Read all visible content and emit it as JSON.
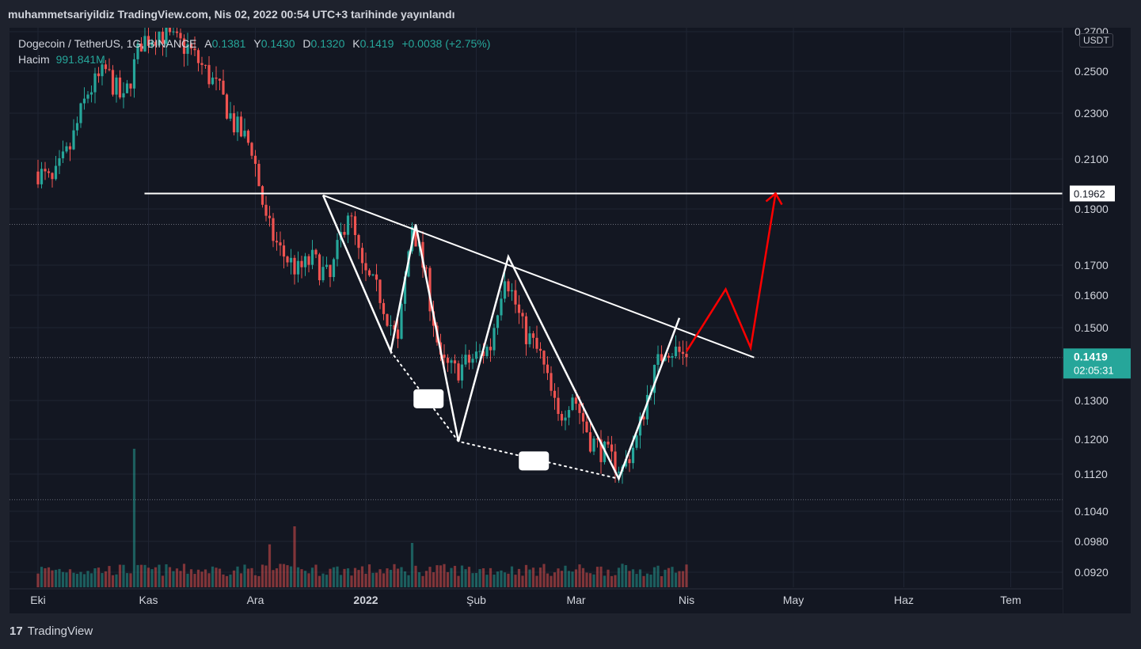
{
  "header": {
    "text": "muhammetsariyildiz TradingView.com, Nis 02, 2022 00:54 UTC+3 tarihinde yayınlandı"
  },
  "legend": {
    "symbol": "Dogecoin / TetherUS, 1G, BINANCE",
    "open_label": "A",
    "open": "0.1381",
    "high_label": "Y",
    "high": "0.1430",
    "low_label": "D",
    "low": "0.1320",
    "close_label": "K",
    "close": "0.1419",
    "change": "+0.0038 (+2.75%)",
    "volume_label": "Hacim",
    "volume": "991.841M"
  },
  "currency": "USDT",
  "colors": {
    "background": "#131722",
    "up": "#26a69a",
    "down": "#ef5350",
    "drawing": "#ffffff",
    "projection": "#ff0000"
  },
  "chart_data": {
    "type": "candlestick",
    "symbol": "Dogecoin / TetherUS",
    "interval": "1G",
    "exchange": "BINANCE",
    "y_ticks": [
      "0.2700",
      "0.2500",
      "0.2300",
      "0.2100",
      "0.1900",
      "0.1700",
      "0.1600",
      "0.1500",
      "0.1300",
      "0.1200",
      "0.1120",
      "0.1040",
      "0.0980",
      "0.0920"
    ],
    "x_ticks": [
      "Eki",
      "Kas",
      "Ara",
      "2022",
      "Şub",
      "Mar",
      "Nis",
      "May",
      "Haz",
      "Tem"
    ],
    "current_price": "0.1419",
    "countdown": "02:05:31",
    "horizontal_level": "0.1962",
    "dotted_levels": [
      0.1845,
      0.1418,
      0.1065
    ],
    "candle_anchors": [
      {
        "date": "2021-10-01",
        "price": 0.205
      },
      {
        "date": "2021-10-05",
        "price": 0.2
      },
      {
        "date": "2021-10-10",
        "price": 0.215
      },
      {
        "date": "2021-10-15",
        "price": 0.24
      },
      {
        "date": "2021-10-20",
        "price": 0.25
      },
      {
        "date": "2021-10-25",
        "price": 0.235
      },
      {
        "date": "2021-10-30",
        "price": 0.265
      },
      {
        "date": "2021-11-04",
        "price": 0.27
      },
      {
        "date": "2021-11-08",
        "price": 0.265
      },
      {
        "date": "2021-11-12",
        "price": 0.262
      },
      {
        "date": "2021-11-17",
        "price": 0.25
      },
      {
        "date": "2021-11-21",
        "price": 0.24
      },
      {
        "date": "2021-11-25",
        "price": 0.225
      },
      {
        "date": "2021-11-30",
        "price": 0.215
      },
      {
        "date": "2021-12-04",
        "price": 0.185
      },
      {
        "date": "2021-12-08",
        "price": 0.175
      },
      {
        "date": "2021-12-13",
        "price": 0.168
      },
      {
        "date": "2021-12-17",
        "price": 0.172
      },
      {
        "date": "2021-12-22",
        "price": 0.165
      },
      {
        "date": "2021-12-27",
        "price": 0.19
      },
      {
        "date": "2021-12-31",
        "price": 0.168
      },
      {
        "date": "2022-01-05",
        "price": 0.16
      },
      {
        "date": "2022-01-10",
        "price": 0.145
      },
      {
        "date": "2022-01-14",
        "price": 0.185
      },
      {
        "date": "2022-01-18",
        "price": 0.165
      },
      {
        "date": "2022-01-22",
        "price": 0.14
      },
      {
        "date": "2022-01-26",
        "price": 0.138
      },
      {
        "date": "2022-02-01",
        "price": 0.142
      },
      {
        "date": "2022-02-05",
        "price": 0.145
      },
      {
        "date": "2022-02-09",
        "price": 0.168
      },
      {
        "date": "2022-02-14",
        "price": 0.15
      },
      {
        "date": "2022-02-19",
        "price": 0.142
      },
      {
        "date": "2022-02-24",
        "price": 0.125
      },
      {
        "date": "2022-02-28",
        "price": 0.132
      },
      {
        "date": "2022-03-05",
        "price": 0.12
      },
      {
        "date": "2022-03-10",
        "price": 0.116
      },
      {
        "date": "2022-03-14",
        "price": 0.113
      },
      {
        "date": "2022-03-18",
        "price": 0.12
      },
      {
        "date": "2022-03-22",
        "price": 0.135
      },
      {
        "date": "2022-03-26",
        "price": 0.145
      },
      {
        "date": "2022-03-30",
        "price": 0.143
      },
      {
        "date": "2022-04-01",
        "price": 0.1419
      }
    ],
    "volume_spikes": [
      {
        "date": "2021-10-28",
        "value": 1.0
      },
      {
        "date": "2021-12-05",
        "value": 0.31
      },
      {
        "date": "2021-12-12",
        "value": 0.44
      },
      {
        "date": "2022-01-14",
        "value": 0.32
      }
    ],
    "patterns": {
      "resistance_line": [
        {
          "date": "2021-12-20",
          "price": 0.1955
        },
        {
          "date": "2022-04-20",
          "price": 0.1418
        }
      ],
      "zigzag": [
        {
          "date": "2021-12-20",
          "price": 0.1955
        },
        {
          "date": "2022-01-08",
          "price": 0.1435
        },
        {
          "date": "2022-01-15",
          "price": 0.1845
        },
        {
          "date": "2022-01-27",
          "price": 0.1195
        },
        {
          "date": "2022-02-10",
          "price": 0.173
        },
        {
          "date": "2022-03-13",
          "price": 0.111
        },
        {
          "date": "2022-03-30",
          "price": 0.153
        }
      ],
      "support_dotted": [
        {
          "date": "2022-01-08",
          "price": 0.1435
        },
        {
          "date": "2022-01-27",
          "price": 0.1195
        },
        {
          "date": "2022-03-13",
          "price": 0.111
        }
      ],
      "projection": [
        {
          "date": "2022-04-01",
          "price": 0.1435
        },
        {
          "date": "2022-04-12",
          "price": 0.162
        },
        {
          "date": "2022-04-19",
          "price": 0.1445
        },
        {
          "date": "2022-04-26",
          "price": 0.1962
        }
      ]
    }
  },
  "footer": {
    "brand": "TradingView"
  }
}
